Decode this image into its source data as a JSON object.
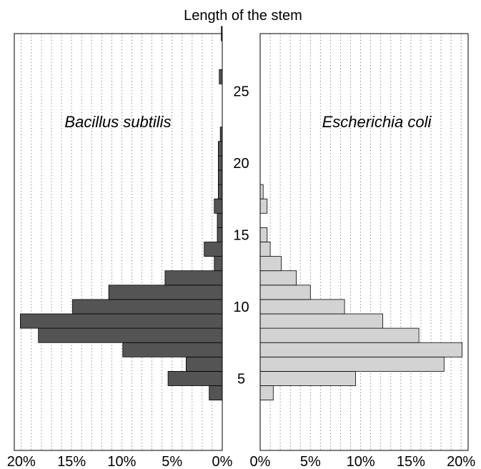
{
  "chart_data": {
    "type": "bar",
    "orientation": "horizontal",
    "layout": "back-to-back",
    "title": "Length of the stem",
    "y_axis": {
      "range": [
        0,
        29
      ],
      "ticks": [
        5,
        10,
        15,
        20,
        25
      ],
      "tick_labels": [
        "5",
        "10",
        "15",
        "20",
        "25"
      ]
    },
    "x_ticks": [
      0,
      5,
      10,
      15,
      20
    ],
    "x_tick_labels": [
      "0%",
      "5%",
      "10%",
      "15%",
      "20%"
    ],
    "xlim": [
      0,
      20.7
    ],
    "grid": "vertical dotted",
    "panels": [
      {
        "name": "Bacillus subtilis",
        "side": "left",
        "color": "#545454",
        "bars": [
          {
            "y": 4,
            "value": 1.3
          },
          {
            "y": 5,
            "value": 5.4
          },
          {
            "y": 6,
            "value": 3.6
          },
          {
            "y": 7,
            "value": 9.9
          },
          {
            "y": 8,
            "value": 18.3
          },
          {
            "y": 9,
            "value": 20.1
          },
          {
            "y": 10,
            "value": 14.9
          },
          {
            "y": 11,
            "value": 11.3
          },
          {
            "y": 12,
            "value": 5.7
          },
          {
            "y": 13,
            "value": 0.8
          },
          {
            "y": 14,
            "value": 1.8
          },
          {
            "y": 15,
            "value": 0.5
          },
          {
            "y": 16,
            "value": 0.5
          },
          {
            "y": 17,
            "value": 0.8
          },
          {
            "y": 18,
            "value": 0.4
          },
          {
            "y": 19,
            "value": 0.4
          },
          {
            "y": 20,
            "value": 0.4
          },
          {
            "y": 21,
            "value": 0.4
          },
          {
            "y": 22,
            "value": 0.2
          },
          {
            "y": 26,
            "value": 0.3
          },
          {
            "y": 29,
            "value": 0.1
          }
        ]
      },
      {
        "name": "Escherichia coli",
        "side": "right",
        "color": "#d3d3d3",
        "bars": [
          {
            "y": 4,
            "value": 1.3
          },
          {
            "y": 5,
            "value": 9.5
          },
          {
            "y": 6,
            "value": 18.3
          },
          {
            "y": 7,
            "value": 20.1
          },
          {
            "y": 8,
            "value": 15.8
          },
          {
            "y": 9,
            "value": 12.2
          },
          {
            "y": 10,
            "value": 8.4
          },
          {
            "y": 11,
            "value": 5.0
          },
          {
            "y": 12,
            "value": 3.6
          },
          {
            "y": 13,
            "value": 2.1
          },
          {
            "y": 14,
            "value": 1.0
          },
          {
            "y": 15,
            "value": 0.7
          },
          {
            "y": 17,
            "value": 0.7
          },
          {
            "y": 18,
            "value": 0.3
          }
        ]
      }
    ]
  }
}
